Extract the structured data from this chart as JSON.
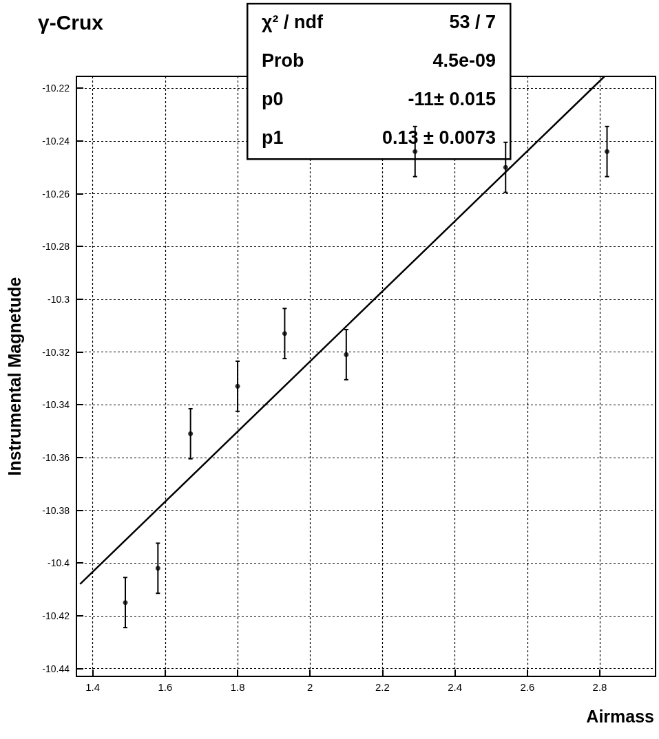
{
  "chart_data": {
    "type": "scatter",
    "title": "γ-Crux",
    "xlabel": "Airmass",
    "ylabel": "Instrumental Magnetude",
    "annotations": [
      "χ² / ndf",
      "53 / 7",
      "Prob",
      "4.5e-09",
      "p0",
      "-11± 0.015",
      "p1",
      "0.13 ± 0.0073"
    ],
    "series": [
      {
        "color": "#000000",
        "marker": "circle",
        "x": [
          1.49,
          1.58,
          1.67,
          1.8,
          1.93,
          2.1,
          2.29,
          2.54,
          2.82
        ],
        "values": [
          -10.415,
          -10.402,
          -10.351,
          -10.333,
          -10.313,
          -10.321,
          -10.244,
          -10.25,
          -10.244
        ],
        "errors": [
          0.0095,
          0.0095,
          0.0095,
          0.0095,
          0.0095,
          0.0095,
          0.0095,
          0.0095,
          0.0095
        ]
      },
      {
        "type": "line",
        "color": "#000000",
        "x": [
          1.365,
          2.813
        ],
        "values": [
          -10.408,
          -10.2155
        ]
      }
    ],
    "xlim": [
      1.355,
      2.954
    ],
    "xticks": [
      1.4,
      1.6,
      1.8,
      2,
      2.2,
      2.4,
      2.6,
      2.8
    ],
    "ylim": [
      -10.443,
      -10.2155
    ],
    "yticks": [
      -10.44,
      -10.42,
      -10.4,
      -10.38,
      -10.36,
      -10.34,
      -10.32,
      -10.3,
      -10.28,
      -10.26,
      -10.24,
      -10.22
    ],
    "grid": true
  }
}
